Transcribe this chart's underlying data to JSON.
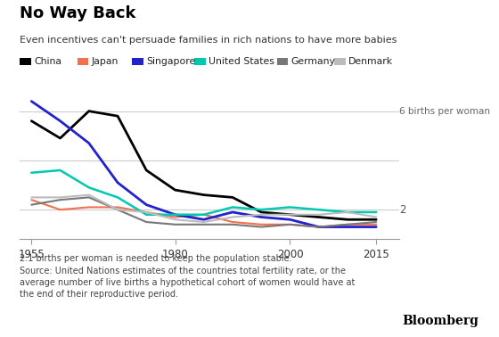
{
  "title": "No Way Back",
  "subtitle": "Even incentives can't persuade families in rich nations to have more babies",
  "footnote": "2.1 births per woman is needed to keep the population stable.\nSource: United Nations estimates of the countries total fertility rate, or the\naverage number of live births a hypothetical cohort of women would have at\nthe end of their reproductive period.",
  "bloomberg_label": "Bloomberg",
  "xlim": [
    1953,
    2019
  ],
  "ylim": [
    0.8,
    7.5
  ],
  "xticks": [
    1955,
    1980,
    2000,
    2015
  ],
  "annotation_6": "6 births per woman",
  "annotation_2": "2",
  "countries": [
    "China",
    "Japan",
    "Singapore",
    "United States",
    "Germany",
    "Denmark"
  ],
  "colors": [
    "#000000",
    "#f07050",
    "#2222cc",
    "#00c8b0",
    "#777777",
    "#bbbbbb"
  ],
  "linewidths": [
    2.0,
    1.5,
    2.0,
    1.8,
    1.5,
    1.5
  ],
  "data": {
    "China": [
      [
        1955,
        5.6
      ],
      [
        1960,
        4.9
      ],
      [
        1965,
        6.0
      ],
      [
        1970,
        5.8
      ],
      [
        1975,
        3.6
      ],
      [
        1980,
        2.8
      ],
      [
        1985,
        2.6
      ],
      [
        1990,
        2.5
      ],
      [
        1995,
        1.9
      ],
      [
        2000,
        1.8
      ],
      [
        2005,
        1.7
      ],
      [
        2010,
        1.6
      ],
      [
        2015,
        1.6
      ]
    ],
    "Japan": [
      [
        1955,
        2.4
      ],
      [
        1960,
        2.0
      ],
      [
        1965,
        2.1
      ],
      [
        1970,
        2.1
      ],
      [
        1975,
        1.9
      ],
      [
        1980,
        1.7
      ],
      [
        1985,
        1.8
      ],
      [
        1990,
        1.5
      ],
      [
        1995,
        1.4
      ],
      [
        2000,
        1.4
      ],
      [
        2005,
        1.3
      ],
      [
        2010,
        1.4
      ],
      [
        2015,
        1.4
      ]
    ],
    "Singapore": [
      [
        1955,
        6.4
      ],
      [
        1960,
        5.6
      ],
      [
        1965,
        4.7
      ],
      [
        1970,
        3.1
      ],
      [
        1975,
        2.2
      ],
      [
        1980,
        1.8
      ],
      [
        1985,
        1.6
      ],
      [
        1990,
        1.9
      ],
      [
        1995,
        1.7
      ],
      [
        2000,
        1.6
      ],
      [
        2005,
        1.3
      ],
      [
        2010,
        1.3
      ],
      [
        2015,
        1.3
      ]
    ],
    "United States": [
      [
        1955,
        3.5
      ],
      [
        1960,
        3.6
      ],
      [
        1965,
        2.9
      ],
      [
        1970,
        2.5
      ],
      [
        1975,
        1.8
      ],
      [
        1980,
        1.8
      ],
      [
        1985,
        1.8
      ],
      [
        1990,
        2.1
      ],
      [
        1995,
        2.0
      ],
      [
        2000,
        2.1
      ],
      [
        2005,
        2.0
      ],
      [
        2010,
        1.9
      ],
      [
        2015,
        1.9
      ]
    ],
    "Germany": [
      [
        1955,
        2.2
      ],
      [
        1960,
        2.4
      ],
      [
        1965,
        2.5
      ],
      [
        1970,
        2.0
      ],
      [
        1975,
        1.5
      ],
      [
        1980,
        1.4
      ],
      [
        1985,
        1.4
      ],
      [
        1990,
        1.4
      ],
      [
        1995,
        1.3
      ],
      [
        2000,
        1.4
      ],
      [
        2005,
        1.3
      ],
      [
        2010,
        1.4
      ],
      [
        2015,
        1.5
      ]
    ],
    "Denmark": [
      [
        1955,
        2.5
      ],
      [
        1960,
        2.5
      ],
      [
        1965,
        2.6
      ],
      [
        1970,
        2.0
      ],
      [
        1975,
        1.9
      ],
      [
        1980,
        1.6
      ],
      [
        1985,
        1.5
      ],
      [
        1990,
        1.7
      ],
      [
        1995,
        1.8
      ],
      [
        2000,
        1.8
      ],
      [
        2005,
        1.8
      ],
      [
        2010,
        1.9
      ],
      [
        2015,
        1.7
      ]
    ]
  }
}
